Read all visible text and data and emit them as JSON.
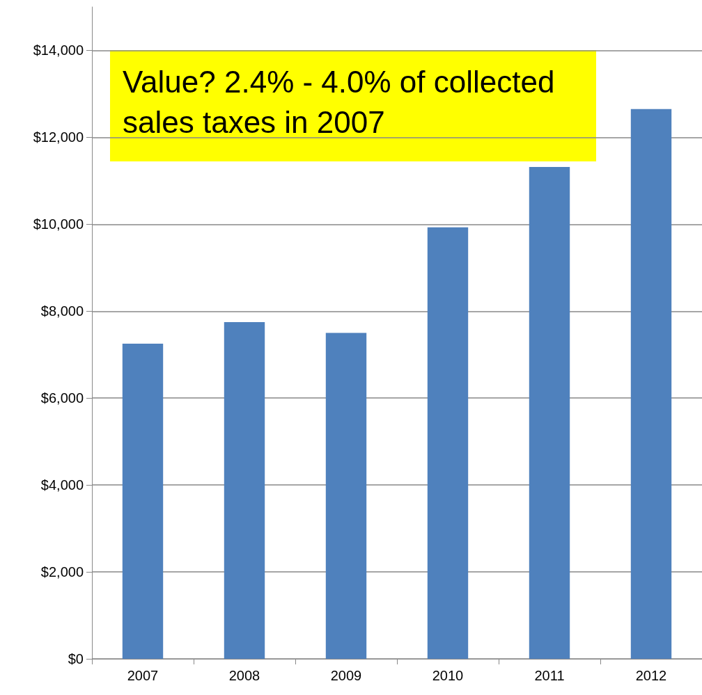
{
  "chart_data": {
    "type": "bar",
    "categories": [
      "2007",
      "2008",
      "2009",
      "2010",
      "2011",
      "2012"
    ],
    "values": [
      7250,
      7750,
      7500,
      9930,
      11320,
      12650
    ],
    "color": "#4f81bd",
    "ylim": [
      0,
      15000
    ],
    "yticks": [
      {
        "value": 0,
        "label": "$0"
      },
      {
        "value": 2000,
        "label": "$2,000"
      },
      {
        "value": 4000,
        "label": "$4,000"
      },
      {
        "value": 6000,
        "label": "$6,000"
      },
      {
        "value": 8000,
        "label": "$8,000"
      },
      {
        "value": 10000,
        "label": "$10,000"
      },
      {
        "value": 12000,
        "label": "$12,000"
      },
      {
        "value": 14000,
        "label": "$14,000"
      }
    ],
    "grid": "y",
    "annotations": [
      "Value? 2.4% - 4.0% of collected sales taxes in 2007"
    ]
  }
}
